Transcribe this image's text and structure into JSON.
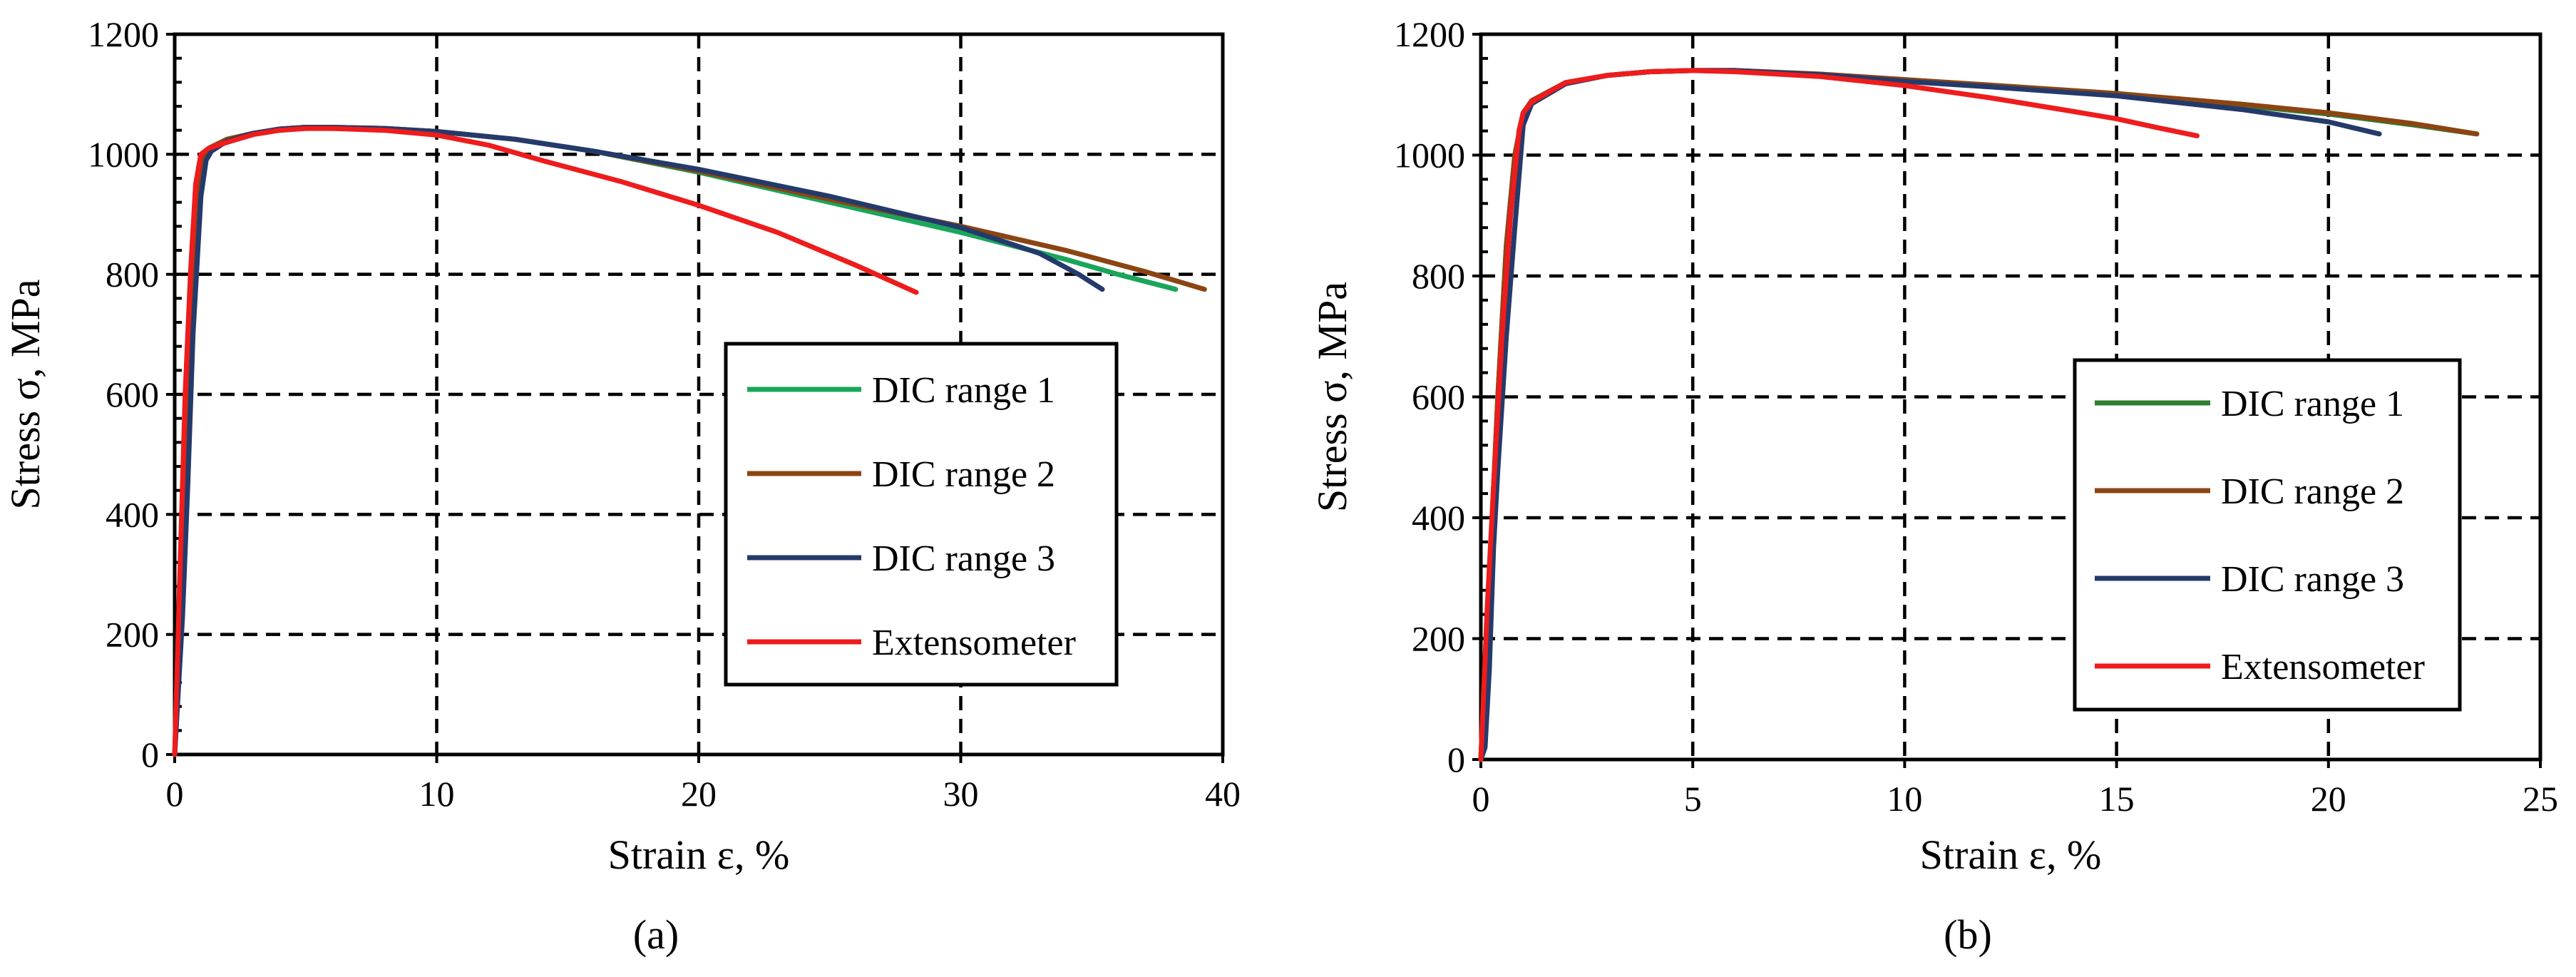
{
  "colors": {
    "dic1_a": "#1aa65a",
    "dic1_b": "#2e7d32",
    "dic2": "#8b4513",
    "dic3": "#243a6b",
    "ext": "#ee1c1c"
  },
  "chart_data": [
    {
      "type": "line",
      "panel_label": "(a)",
      "title": "",
      "xlabel": "Strain ε, %",
      "ylabel": "Stress σ, MPa",
      "xlim": [
        0,
        40
      ],
      "ylim": [
        0,
        1200
      ],
      "xticks": [
        0,
        10,
        20,
        30,
        40
      ],
      "yticks": [
        0,
        200,
        400,
        600,
        800,
        1000,
        1200
      ],
      "xtick_labels": [
        "0",
        "10",
        "20",
        "30",
        "40"
      ],
      "ytick_labels": [
        "0",
        "200",
        "400",
        "600",
        "800",
        "1000",
        "1200"
      ],
      "grid": true,
      "legend_position": "center-right",
      "series": [
        {
          "name": "DIC range 1",
          "color_key": "dic1_a",
          "x": [
            0,
            0.3,
            0.5,
            0.7,
            0.9,
            1.1,
            1.3,
            2,
            3,
            4,
            5,
            6,
            8,
            10,
            13,
            16,
            20,
            25,
            30,
            34,
            36,
            38.2
          ],
          "y": [
            0,
            250,
            500,
            780,
            940,
            1000,
            1010,
            1025,
            1035,
            1042,
            1045,
            1045,
            1043,
            1038,
            1025,
            1005,
            970,
            920,
            870,
            825,
            800,
            775
          ]
        },
        {
          "name": "DIC range 2",
          "color_key": "dic2",
          "x": [
            0,
            0.3,
            0.5,
            0.7,
            0.9,
            1.1,
            1.3,
            2,
            3,
            4,
            5,
            6,
            8,
            10,
            13,
            16,
            20,
            25,
            30,
            34,
            37,
            39.3
          ],
          "y": [
            0,
            250,
            500,
            780,
            940,
            1000,
            1010,
            1025,
            1035,
            1042,
            1045,
            1045,
            1043,
            1038,
            1025,
            1005,
            972,
            925,
            880,
            840,
            805,
            775
          ]
        },
        {
          "name": "DIC range 3",
          "color_key": "dic3",
          "x": [
            0,
            0.3,
            0.5,
            0.7,
            1.0,
            1.2,
            1.4,
            2,
            3,
            4,
            5,
            6,
            8,
            10,
            13,
            16,
            20,
            25,
            30,
            33,
            34.5,
            35.4
          ],
          "y": [
            0,
            230,
            450,
            700,
            930,
            990,
            1005,
            1022,
            1035,
            1042,
            1045,
            1045,
            1043,
            1038,
            1025,
            1005,
            975,
            930,
            878,
            835,
            800,
            775
          ]
        },
        {
          "name": "Extensometer",
          "color_key": "ext",
          "x": [
            0,
            0.2,
            0.4,
            0.6,
            0.8,
            1.0,
            1.3,
            2,
            3,
            4,
            5,
            6,
            8,
            10,
            12,
            14,
            17,
            20,
            23,
            26,
            28.3
          ],
          "y": [
            0,
            300,
            600,
            800,
            950,
            1000,
            1010,
            1020,
            1033,
            1040,
            1043,
            1043,
            1040,
            1032,
            1015,
            990,
            955,
            915,
            870,
            815,
            770
          ]
        }
      ]
    },
    {
      "type": "line",
      "panel_label": "(b)",
      "title": "",
      "xlabel": "Strain ε, %",
      "ylabel": "Stress σ, MPa",
      "xlim": [
        0,
        25
      ],
      "ylim": [
        0,
        1200
      ],
      "xticks": [
        0,
        5,
        10,
        15,
        20,
        25
      ],
      "yticks": [
        0,
        200,
        400,
        600,
        800,
        1000,
        1200
      ],
      "xtick_labels": [
        "0",
        "5",
        "10",
        "15",
        "20",
        "25"
      ],
      "ytick_labels": [
        "0",
        "200",
        "400",
        "600",
        "800",
        "1000",
        "1200"
      ],
      "grid": true,
      "legend_position": "bottom-right",
      "series": [
        {
          "name": "DIC range 1",
          "color_key": "dic1_b",
          "x": [
            0,
            0.2,
            0.4,
            0.6,
            0.8,
            1.0,
            1.2,
            2,
            3,
            4,
            5,
            6,
            8,
            10,
            12,
            15,
            18,
            20,
            22,
            23.5
          ],
          "y": [
            0,
            300,
            600,
            850,
            1000,
            1070,
            1090,
            1120,
            1132,
            1138,
            1140,
            1140,
            1133,
            1124,
            1115,
            1100,
            1082,
            1068,
            1050,
            1035
          ]
        },
        {
          "name": "DIC range 2",
          "color_key": "dic2",
          "x": [
            0,
            0.2,
            0.4,
            0.6,
            0.8,
            1.0,
            1.2,
            2,
            3,
            4,
            5,
            6,
            8,
            10,
            12,
            15,
            18,
            20,
            22,
            23.5
          ],
          "y": [
            0,
            300,
            600,
            850,
            1000,
            1070,
            1090,
            1120,
            1132,
            1138,
            1140,
            1140,
            1134,
            1125,
            1116,
            1102,
            1084,
            1070,
            1052,
            1035
          ]
        },
        {
          "name": "DIC range 3",
          "color_key": "dic3",
          "x": [
            0,
            0.1,
            0.2,
            0.3,
            0.4,
            0.6,
            0.8,
            1.0,
            1.2,
            2,
            3,
            4,
            5,
            6,
            8,
            10,
            12,
            15,
            18,
            20,
            21.2
          ],
          "y": [
            0,
            20,
            150,
            350,
            480,
            700,
            880,
            1050,
            1085,
            1118,
            1132,
            1138,
            1140,
            1140,
            1133,
            1122,
            1113,
            1098,
            1075,
            1055,
            1035
          ]
        },
        {
          "name": "Extensometer",
          "color_key": "ext",
          "x": [
            0,
            0.15,
            0.3,
            0.5,
            0.7,
            0.9,
            1.0,
            1.2,
            2,
            3,
            4,
            5,
            6,
            8,
            10,
            12,
            14,
            15,
            16,
            16.9
          ],
          "y": [
            0,
            250,
            450,
            700,
            900,
            1040,
            1070,
            1088,
            1120,
            1132,
            1138,
            1140,
            1138,
            1130,
            1115,
            1095,
            1072,
            1060,
            1045,
            1032
          ]
        }
      ]
    }
  ]
}
